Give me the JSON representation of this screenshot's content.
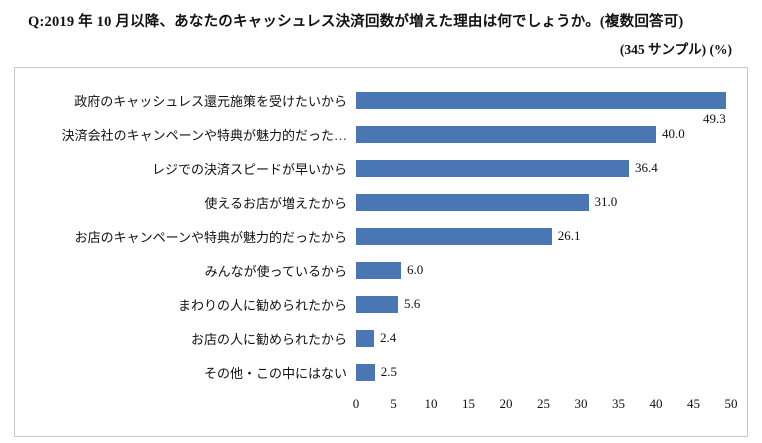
{
  "header": {
    "title": "Q:2019 年 10 月以降、あなたのキャッシュレス決済回数が増えた理由は何でしょうか。(複数回答可)",
    "subtitle": "(345 サンプル) (%)"
  },
  "chart_data": {
    "type": "bar",
    "orientation": "horizontal",
    "title": "",
    "xlabel": "",
    "ylabel": "",
    "xlim": [
      0,
      50
    ],
    "xticks": [
      0,
      5,
      10,
      15,
      20,
      25,
      30,
      35,
      40,
      45,
      50
    ],
    "grid": false,
    "legend": false,
    "bar_color": "#4a76b3",
    "categories": [
      "政府のキャッシュレス還元施策を受けたいから",
      "決済会社のキャンペーンや特典が魅力的だった…",
      "レジでの決済スピードが早いから",
      "使えるお店が増えたから",
      "お店のキャンペーンや特典が魅力的だったから",
      "みんなが使っているから",
      "まわりの人に勧められたから",
      "お店の人に勧められたから",
      "その他・この中にはない"
    ],
    "values": [
      49.3,
      40.0,
      36.4,
      31.0,
      26.1,
      6.0,
      5.6,
      2.4,
      2.5
    ],
    "value_labels": [
      "49.3",
      "40.0",
      "36.4",
      "31.0",
      "26.1",
      "6.0",
      "5.6",
      "2.4",
      "2.5"
    ]
  }
}
